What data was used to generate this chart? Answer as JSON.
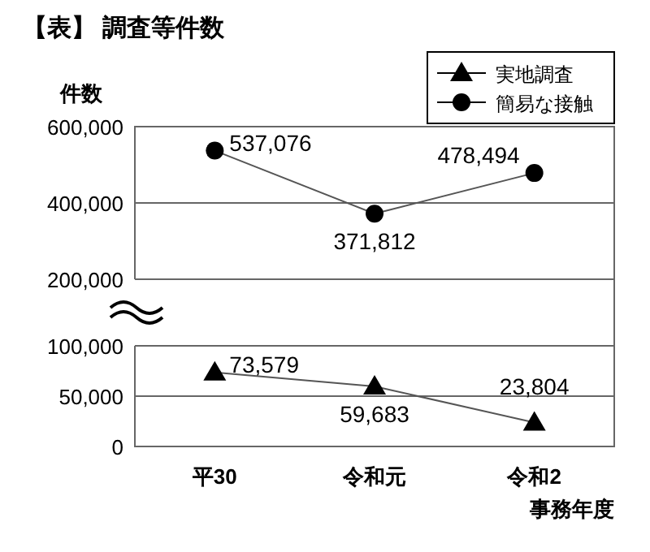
{
  "chart_data": [
    {
      "type": "line",
      "title": "【表】 調査等件数",
      "ylabel": "件数",
      "series": [
        {
          "name": "簡易な接触",
          "color": "#000000",
          "marker": "circle",
          "values": [
            537076,
            371812,
            478494
          ],
          "value_labels": [
            "537,076",
            "371,812",
            "478,494"
          ]
        }
      ],
      "ylim": [
        200000,
        600000
      ],
      "yticks": [
        {
          "value": 200000,
          "label": "200,000"
        },
        {
          "value": 400000,
          "label": "400,000"
        },
        {
          "value": 600000,
          "label": "600,000"
        }
      ],
      "grid": "y",
      "legend": "top right",
      "tick_labels": "y"
    },
    {
      "type": "line",
      "xlabel": "事務年度",
      "categories": [
        "平30",
        "令和元",
        "令和2"
      ],
      "series": [
        {
          "name": "実地調査",
          "color": "#000000",
          "marker": "triangle",
          "values": [
            73579,
            59683,
            23804
          ],
          "value_labels": [
            "73,579",
            "59,683",
            "23,804"
          ]
        }
      ],
      "ylim": [
        0,
        100000
      ],
      "yticks": [
        0,
        {
          "value": 50000,
          "label": "50,000"
        },
        {
          "value": 100000,
          "label": "100,000"
        }
      ],
      "grid": "y"
    }
  ]
}
